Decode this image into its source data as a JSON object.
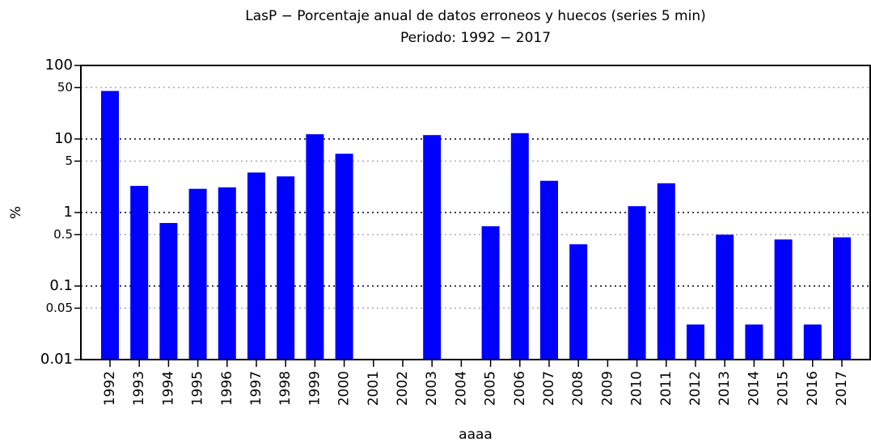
{
  "chart_data": {
    "type": "bar",
    "title": "LasP − Porcentaje anual de datos erroneos y huecos (series 5 min)",
    "subtitle": "Periodo: 1992 − 2017",
    "x_label": "aaaa",
    "y_label": "%",
    "categories": [
      "1992",
      "1993",
      "1994",
      "1995",
      "1996",
      "1997",
      "1998",
      "1999",
      "2000",
      "2001",
      "2002",
      "2003",
      "2004",
      "2005",
      "2006",
      "2007",
      "2008",
      "2009",
      "2010",
      "2011",
      "2012",
      "2013",
      "2014",
      "2015",
      "2016",
      "2017"
    ],
    "values": [
      45,
      2.3,
      0.72,
      2.1,
      2.2,
      3.5,
      3.1,
      11.6,
      6.3,
      null,
      null,
      11.3,
      null,
      0.65,
      12,
      2.7,
      0.37,
      null,
      1.22,
      2.5,
      0.03,
      0.5,
      0.03,
      0.43,
      0.03,
      0.46
    ],
    "color": "#0000ff",
    "log_scale": true,
    "ylim": [
      0.01,
      100
    ],
    "yticks": [
      0.01,
      0.05,
      0.1,
      0.5,
      1,
      5,
      10,
      50,
      100
    ],
    "grid": true
  }
}
